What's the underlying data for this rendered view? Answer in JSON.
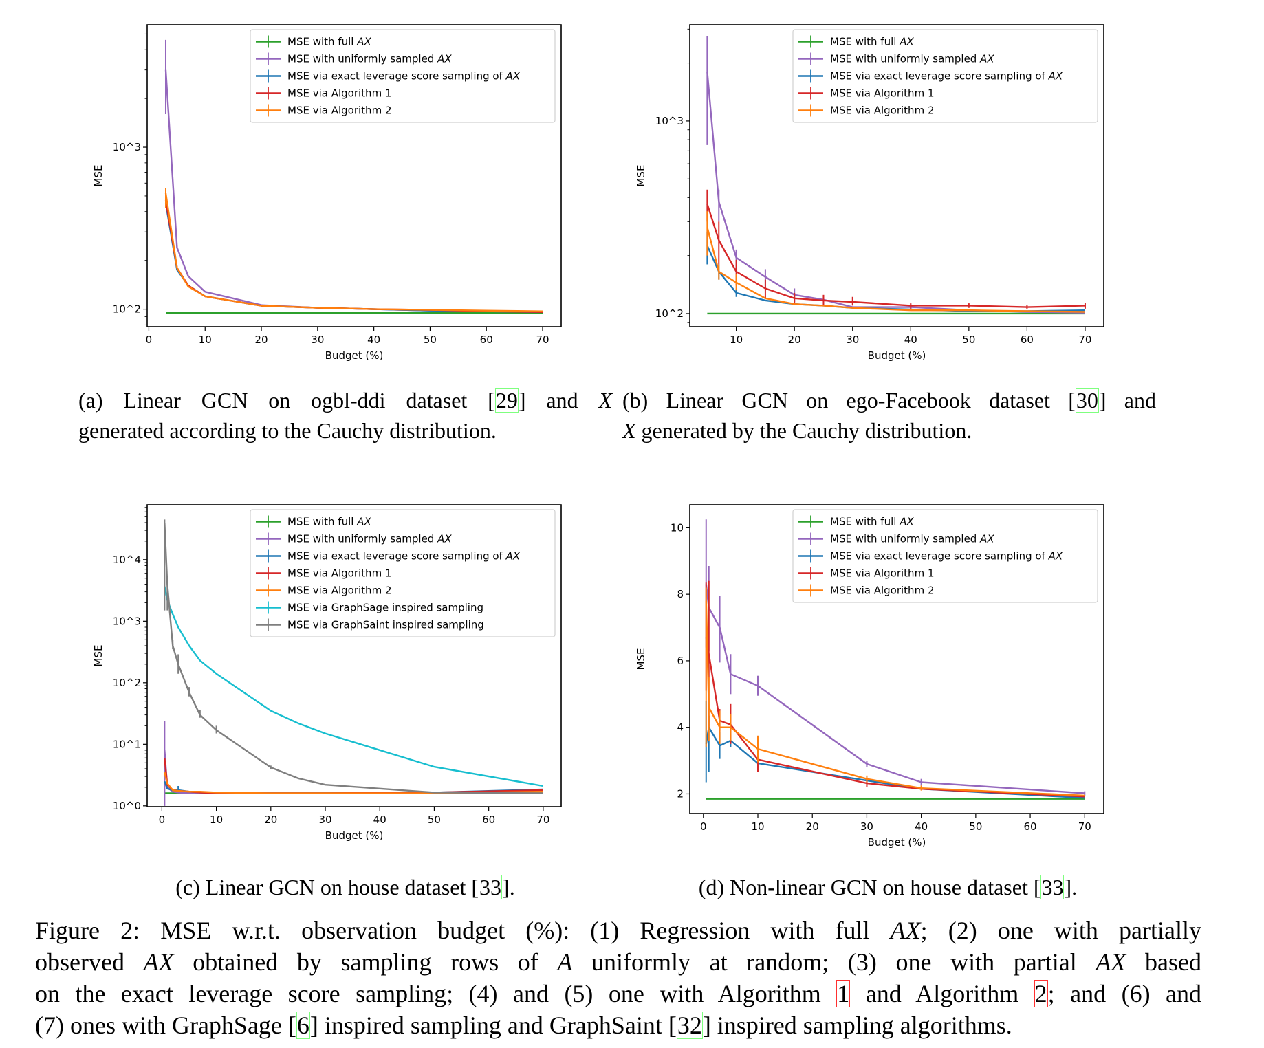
{
  "colors": {
    "full": "#2ca02c",
    "uniform": "#9467bd",
    "leverage": "#1f77b4",
    "alg1": "#d62728",
    "alg2": "#ff7f0e",
    "graphsage": "#17becf",
    "graphsaint": "#7f7f7f"
  },
  "chart_data": [
    {
      "id": "a",
      "type": "line",
      "xlabel": "Budget (%)",
      "ylabel": "MSE",
      "yscale": "log",
      "xlim": [
        -0.3,
        73.3
      ],
      "ylim": [
        78,
        5700
      ],
      "xticks": [
        0,
        10,
        20,
        30,
        40,
        50,
        60,
        70
      ],
      "yticks": [
        100,
        1000
      ],
      "ytick_labels": [
        "10^2",
        "10^3"
      ],
      "legend": "top-right",
      "grid": false,
      "x": [
        3,
        5,
        7,
        10,
        20,
        30,
        40,
        50,
        60,
        70
      ],
      "series": [
        {
          "key": "full",
          "name": "MSE with full AX",
          "values": [
            95,
            95,
            95,
            95,
            95,
            95,
            95,
            95,
            95,
            95
          ]
        },
        {
          "key": "uniform",
          "name": "MSE with uniformly sampled AX",
          "values": [
            3000,
            240,
            160,
            128,
            106,
            102,
            100,
            98,
            97,
            96
          ],
          "err": [
            [
              1600,
              4600
            ],
            null,
            null,
            null,
            null,
            null,
            null,
            null,
            null,
            null
          ]
        },
        {
          "key": "leverage",
          "name": "MSE via exact leverage score sampling of AX",
          "values": [
            450,
            175,
            140,
            120,
            105,
            102,
            100,
            98,
            97,
            96
          ]
        },
        {
          "key": "alg1",
          "name": "MSE via Algorithm 1",
          "values": [
            470,
            180,
            140,
            120,
            105,
            102,
            100,
            99,
            97,
            96
          ]
        },
        {
          "key": "alg2",
          "name": "MSE via Algorithm 2",
          "values": [
            520,
            180,
            138,
            120,
            105,
            102,
            100,
            99,
            98,
            97
          ],
          "err": [
            [
              420,
              560
            ],
            null,
            null,
            null,
            null,
            null,
            null,
            null,
            null,
            null
          ]
        }
      ]
    },
    {
      "id": "b",
      "type": "line",
      "xlabel": "Budget (%)",
      "ylabel": "MSE",
      "yscale": "log",
      "xlim": [
        2,
        73.2
      ],
      "ylim": [
        85.5,
        3160
      ],
      "xticks": [
        10,
        20,
        30,
        40,
        50,
        60,
        70
      ],
      "yticks": [
        100,
        1000
      ],
      "ytick_labels": [
        "10^2",
        "10^3"
      ],
      "legend": "top-right",
      "grid": false,
      "x": [
        5,
        7,
        10,
        15,
        20,
        25,
        30,
        40,
        50,
        60,
        70
      ],
      "series": [
        {
          "key": "full",
          "name": "MSE with full AX",
          "values": [
            100,
            100,
            100,
            100,
            100,
            100,
            100,
            100,
            100,
            100,
            100
          ]
        },
        {
          "key": "uniform",
          "name": "MSE with uniformly sampled AX",
          "values": [
            1800,
            380,
            195,
            155,
            125,
            118,
            108,
            108,
            104,
            102,
            101
          ],
          "err": [
            [
              750,
              2750
            ],
            [
              300,
              440
            ],
            [
              170,
              215
            ],
            [
              135,
              170
            ],
            [
              115,
              135
            ],
            null,
            null,
            [
              104,
              112
            ],
            null,
            null,
            null
          ]
        },
        {
          "key": "leverage",
          "name": "MSE via exact leverage score sampling of AX",
          "values": [
            225,
            165,
            128,
            117,
            112,
            110,
            107,
            105,
            103,
            103,
            104
          ],
          "err": [
            [
              180,
              265
            ],
            [
              150,
              180
            ],
            [
              122,
              134
            ],
            null,
            null,
            null,
            null,
            null,
            null,
            null,
            null
          ]
        },
        {
          "key": "alg1",
          "name": "MSE via Algorithm 1",
          "values": [
            370,
            240,
            165,
            135,
            120,
            117,
            115,
            110,
            110,
            108,
            110
          ],
          "err": [
            [
              300,
              440
            ],
            [
              180,
              300
            ],
            [
              140,
              190
            ],
            [
              120,
              150
            ],
            [
              112,
              128
            ],
            [
              110,
              125
            ],
            [
              110,
              122
            ],
            [
              106,
              114
            ],
            [
              107,
              113
            ],
            [
              105,
              111
            ],
            [
              106,
              114
            ]
          ]
        },
        {
          "key": "alg2",
          "name": "MSE via Algorithm 2",
          "values": [
            280,
            165,
            145,
            120,
            112,
            110,
            107,
            104,
            104,
            103,
            102
          ],
          "err": [
            [
              200,
              340
            ],
            [
              150,
              180
            ],
            [
              132,
              160
            ],
            null,
            null,
            null,
            null,
            null,
            null,
            null,
            null
          ]
        }
      ]
    },
    {
      "id": "c",
      "type": "line",
      "xlabel": "Budget (%)",
      "ylabel": "MSE",
      "yscale": "log",
      "xlim": [
        -2.7,
        73.3
      ],
      "ylim": [
        0.97,
        78000
      ],
      "xticks": [
        0,
        10,
        20,
        30,
        40,
        50,
        60,
        70
      ],
      "yticks": [
        1,
        10,
        100,
        1000,
        10000
      ],
      "ytick_labels": [
        "10^0",
        "10^1",
        "10^2",
        "10^3",
        "10^4"
      ],
      "legend": "top-right",
      "grid": false,
      "x": [
        0.5,
        1,
        2,
        3,
        5,
        7,
        10,
        20,
        25,
        30,
        50,
        70
      ],
      "series": [
        {
          "key": "full",
          "name": "MSE with full AX",
          "values": [
            1.6,
            1.6,
            1.6,
            1.6,
            1.6,
            1.6,
            1.6,
            1.6,
            1.6,
            1.6,
            1.6,
            1.6
          ]
        },
        {
          "key": "uniform",
          "name": "MSE with uniformly sampled AX",
          "values": [
            8,
            2,
            1.7,
            1.65,
            1.6,
            1.6,
            1.6,
            1.6,
            1.6,
            1.6,
            1.6,
            1.6
          ],
          "err": [
            [
              1,
              24
            ],
            null,
            null,
            null,
            null,
            null,
            null,
            null,
            null,
            null,
            null,
            null
          ]
        },
        {
          "key": "leverage",
          "name": "MSE via exact leverage score sampling of AX",
          "values": [
            2.5,
            1.9,
            1.8,
            1.8,
            1.7,
            1.65,
            1.6,
            1.6,
            1.6,
            1.6,
            1.65,
            1.85
          ],
          "err": [
            null,
            null,
            null,
            [
              1.7,
              2.1
            ],
            null,
            null,
            null,
            null,
            null,
            null,
            null,
            null
          ]
        },
        {
          "key": "alg1",
          "name": "MSE via Algorithm 1",
          "values": [
            6,
            2.2,
            1.8,
            1.75,
            1.7,
            1.65,
            1.6,
            1.6,
            1.6,
            1.6,
            1.65,
            1.8
          ]
        },
        {
          "key": "alg2",
          "name": "MSE via Algorithm 2",
          "values": [
            3.5,
            2.3,
            1.8,
            1.75,
            1.7,
            1.7,
            1.65,
            1.6,
            1.6,
            1.6,
            1.6,
            1.7
          ]
        },
        {
          "key": "graphsage",
          "name": "MSE via GraphSage inspired sampling",
          "values": [
            3700,
            2200,
            1300,
            800,
            400,
            230,
            140,
            35,
            22,
            15,
            4.3,
            2.1
          ]
        },
        {
          "key": "graphsaint",
          "name": "MSE via GraphSaint inspired sampling",
          "values": [
            40000,
            4000,
            400,
            200,
            70,
            30,
            17,
            4.2,
            2.8,
            2.2,
            1.65,
            1.6
          ],
          "err": [
            [
              1500,
              45000
            ],
            [
              1500,
              4500
            ],
            [
              350,
              500
            ],
            [
              140,
              290
            ],
            [
              60,
              85
            ],
            [
              27,
              36
            ],
            [
              15,
              20
            ],
            [
              3.9,
              4.5
            ],
            null,
            null,
            null,
            null
          ]
        }
      ]
    },
    {
      "id": "d",
      "type": "line",
      "xlabel": "Budget (%)",
      "ylabel": "MSE",
      "yscale": "linear",
      "xlim": [
        -2.5,
        73.5
      ],
      "ylim": [
        1.41,
        10.69
      ],
      "xticks": [
        0,
        10,
        20,
        30,
        40,
        50,
        60,
        70
      ],
      "yticks": [
        2,
        4,
        6,
        8,
        10
      ],
      "ytick_labels": [
        "2",
        "4",
        "6",
        "8",
        "10"
      ],
      "legend": "top-right",
      "grid": false,
      "x": [
        0.5,
        1,
        3,
        5,
        10,
        30,
        40,
        70
      ],
      "series": [
        {
          "key": "full",
          "name": "MSE with full AX",
          "values": [
            1.85,
            1.85,
            1.85,
            1.85,
            1.85,
            1.85,
            1.85,
            1.85
          ]
        },
        {
          "key": "uniform",
          "name": "MSE with uniformly sampled AX",
          "values": [
            8.3,
            7.6,
            7.0,
            5.6,
            5.25,
            2.9,
            2.35,
            2.02
          ],
          "err": [
            [
              6.4,
              10.25
            ],
            [
              6.3,
              8.85
            ],
            [
              5.95,
              7.95
            ],
            [
              5.0,
              6.2
            ],
            [
              4.95,
              5.55
            ],
            [
              2.8,
              3.0
            ],
            [
              2.25,
              2.45
            ],
            [
              1.95,
              2.08
            ]
          ]
        },
        {
          "key": "leverage",
          "name": "MSE via exact leverage score sampling of AX",
          "values": [
            3.5,
            4.0,
            3.45,
            3.6,
            2.92,
            2.4,
            2.15,
            1.88
          ],
          "err": [
            [
              2.35,
              4.8
            ],
            [
              2.65,
              4.35
            ],
            [
              3.05,
              3.85
            ],
            [
              3.4,
              3.8
            ],
            null,
            null,
            null,
            null
          ]
        },
        {
          "key": "alg1",
          "name": "MSE via Algorithm 1",
          "values": [
            6.7,
            6.2,
            4.2,
            4.08,
            3.03,
            2.32,
            2.15,
            1.92
          ],
          "err": [
            [
              5.1,
              8.35
            ],
            [
              4.0,
              8.4
            ],
            [
              3.9,
              4.55
            ],
            [
              3.5,
              4.7
            ],
            [
              2.65,
              3.4
            ],
            [
              2.2,
              2.45
            ],
            null,
            null
          ]
        },
        {
          "key": "alg2",
          "name": "MSE via Algorithm 2",
          "values": [
            7.8,
            4.6,
            4.0,
            4.0,
            3.35,
            2.45,
            2.17,
            1.95
          ],
          "err": [
            [
              3.4,
              8.2
            ],
            [
              3.6,
              5.5
            ],
            [
              3.5,
              4.5
            ],
            [
              3.6,
              4.4
            ],
            [
              2.95,
              3.75
            ],
            [
              2.35,
              2.55
            ],
            [
              2.1,
              2.25
            ],
            null
          ]
        }
      ]
    }
  ],
  "subcaptions": [
    {
      "id": "a",
      "lines": [
        [
          {
            "t": "(a) Linear GCN on ogbl-ddi dataset ["
          },
          {
            "t": "29",
            "k": "cite"
          },
          {
            "t": "] and "
          },
          {
            "t": "X",
            "k": "math"
          }
        ],
        [
          {
            "t": "generated according to the Cauchy distribution."
          }
        ]
      ]
    },
    {
      "id": "b",
      "lines": [
        [
          {
            "t": "(b) Linear GCN on ego-Facebook dataset ["
          },
          {
            "t": "30",
            "k": "cite"
          },
          {
            "t": "] and"
          }
        ],
        [
          {
            "t": "X",
            "k": "math"
          },
          {
            "t": " generated by the Cauchy distribution."
          }
        ]
      ]
    },
    {
      "id": "c",
      "lines": [
        [
          {
            "t": "(c) Linear GCN on house dataset ["
          },
          {
            "t": "33",
            "k": "cite"
          },
          {
            "t": "]."
          }
        ]
      ]
    },
    {
      "id": "d",
      "lines": [
        [
          {
            "t": "(d) Non-linear GCN on house dataset ["
          },
          {
            "t": "33",
            "k": "cite"
          },
          {
            "t": "]."
          }
        ]
      ]
    }
  ],
  "figure_caption": {
    "lines": [
      [
        {
          "t": "Figure 2: MSE w.r.t. observation budget (%): (1) Regression with full "
        },
        {
          "t": "AX",
          "k": "math"
        },
        {
          "t": "; (2) one with partially"
        }
      ],
      [
        {
          "t": "observed "
        },
        {
          "t": "AX",
          "k": "math"
        },
        {
          "t": " obtained by sampling rows of "
        },
        {
          "t": "A",
          "k": "math"
        },
        {
          "t": " uniformly at random; (3) one with partial "
        },
        {
          "t": "AX",
          "k": "math"
        },
        {
          "t": " based"
        }
      ],
      [
        {
          "t": "on the exact leverage score sampling; (4) and (5) one with Algorithm "
        },
        {
          "t": "1",
          "k": "ref"
        },
        {
          "t": " and Algorithm "
        },
        {
          "t": "2",
          "k": "ref"
        },
        {
          "t": "; and (6) and"
        }
      ],
      [
        {
          "t": "(7) ones with GraphSage ["
        },
        {
          "t": "6",
          "k": "cite"
        },
        {
          "t": "] inspired sampling and GraphSaint ["
        },
        {
          "t": "32",
          "k": "cite"
        },
        {
          "t": "] inspired sampling algorithms."
        }
      ]
    ]
  }
}
